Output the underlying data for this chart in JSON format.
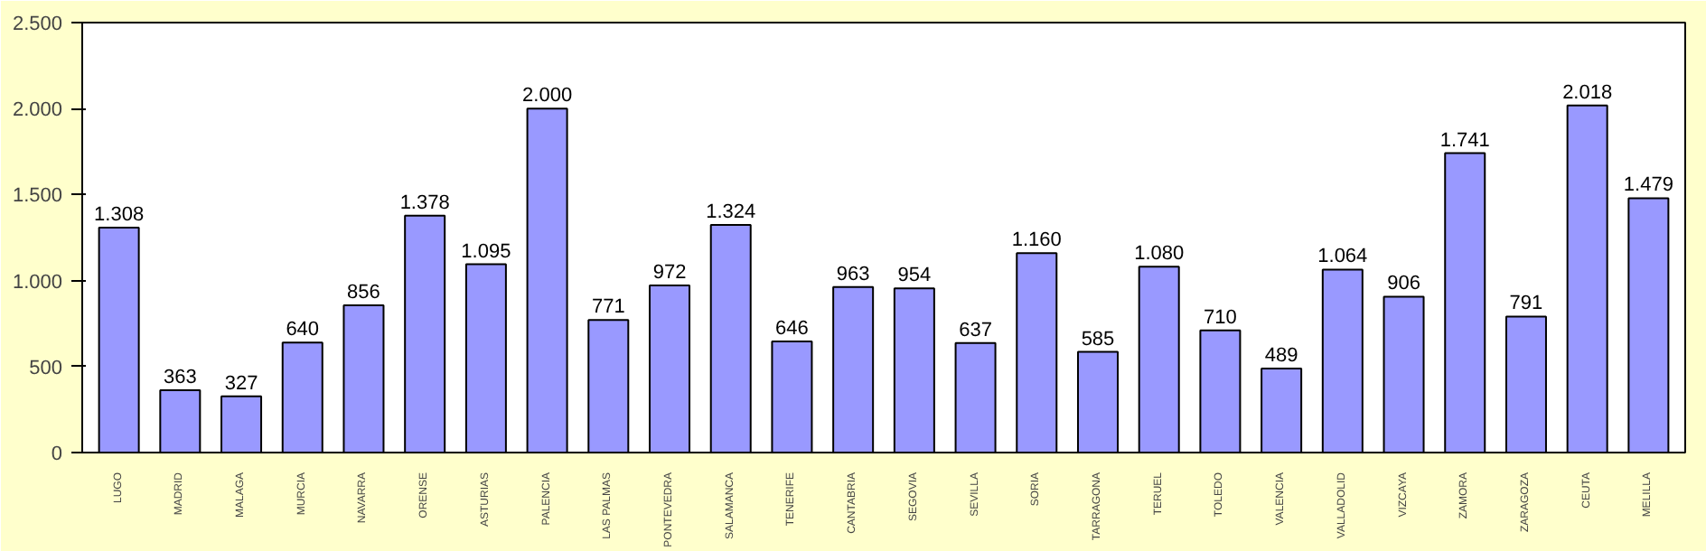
{
  "chart_data": {
    "type": "bar",
    "categories": [
      "LUGO",
      "MADRID",
      "MALAGA",
      "MURCIA",
      "NAVARRA",
      "ORENSE",
      "ASTURIAS",
      "PALENCIA",
      "LAS PALMAS",
      "PONTEVEDRA",
      "SALAMANCA",
      "TENERIFE",
      "CANTABRIA",
      "SEGOVIA",
      "SEVILLA",
      "SORIA",
      "TARRAGONA",
      "TERUEL",
      "TOLEDO",
      "VALENCIA",
      "VALLADOLID",
      "VIZCAYA",
      "ZAMORA",
      "ZARAGOZA",
      "CEUTA",
      "MELILLA"
    ],
    "values": [
      1308,
      363,
      327,
      640,
      856,
      1378,
      1095,
      2000,
      771,
      972,
      1324,
      646,
      963,
      954,
      637,
      1160,
      585,
      1080,
      710,
      489,
      1064,
      906,
      1741,
      791,
      2018,
      1479
    ],
    "value_labels": [
      "1.308",
      "363",
      "327",
      "640",
      "856",
      "1.378",
      "1.095",
      "2.000",
      "771",
      "972",
      "1.324",
      "646",
      "963",
      "954",
      "637",
      "1.160",
      "585",
      "1.080",
      "710",
      "489",
      "1.064",
      "906",
      "1.741",
      "791",
      "2.018",
      "1.479"
    ],
    "color": "#9999ff",
    "ylim": [
      0,
      2500
    ],
    "yticks": [
      0,
      500,
      {
        "value": 1000,
        "label": "1.000"
      },
      {
        "value": 1500,
        "label": "1.500"
      },
      {
        "value": 2000,
        "label": "2.000"
      },
      {
        "value": 2500,
        "label": "2.500"
      }
    ],
    "grid": false
  }
}
